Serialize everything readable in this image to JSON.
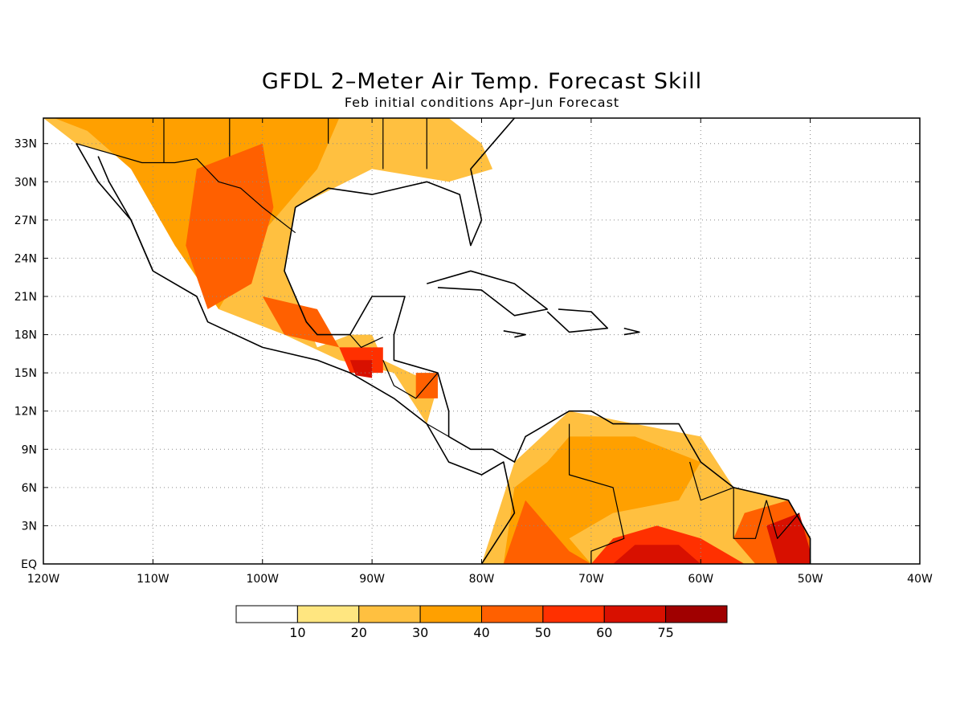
{
  "title": "GFDL 2–Meter Air Temp. Forecast Skill",
  "subtitle": "Feb initial conditions  Apr–Jun Forecast",
  "map": {
    "lon_range": [
      -120,
      -40
    ],
    "lat_range": [
      0,
      35
    ],
    "grid": true,
    "lat_labels": [
      "EQ",
      "3N",
      "6N",
      "9N",
      "12N",
      "15N",
      "18N",
      "21N",
      "24N",
      "27N",
      "30N",
      "33N"
    ],
    "lon_labels": [
      "120W",
      "110W",
      "100W",
      "90W",
      "80W",
      "70W",
      "60W",
      "50W",
      "40W"
    ]
  },
  "colorbar": {
    "labels": [
      "10",
      "20",
      "30",
      "40",
      "50",
      "60",
      "75"
    ],
    "colors": [
      "#ffffff",
      "#ffe680",
      "#ffc040",
      "#ffa000",
      "#ff6000",
      "#ff3000",
      "#d81000",
      "#a00000"
    ]
  },
  "skill_regions": [
    {
      "level": 2,
      "points": [
        [
          -120,
          35
        ],
        [
          -83,
          35
        ],
        [
          -80,
          33
        ],
        [
          -79,
          31
        ],
        [
          -83,
          30
        ],
        [
          -90,
          31
        ],
        [
          -97,
          28
        ],
        [
          -98,
          23
        ],
        [
          -96,
          19
        ],
        [
          -95,
          17
        ],
        [
          -92,
          18
        ],
        [
          -90,
          18
        ],
        [
          -89,
          16
        ],
        [
          -84,
          14
        ],
        [
          -85,
          11
        ],
        [
          -88,
          15
        ],
        [
          -93,
          16
        ],
        [
          -98,
          18
        ],
        [
          -104,
          20
        ],
        [
          -107,
          25
        ],
        [
          -110,
          29
        ],
        [
          -113,
          32
        ],
        [
          -117,
          33
        ]
      ]
    },
    {
      "level": 3,
      "points": [
        [
          -119,
          35
        ],
        [
          -93,
          35
        ],
        [
          -95,
          31
        ],
        [
          -100,
          26
        ],
        [
          -104,
          20
        ],
        [
          -108,
          25
        ],
        [
          -112,
          31
        ],
        [
          -116,
          34
        ]
      ]
    },
    {
      "level": 4,
      "points": [
        [
          -106,
          31
        ],
        [
          -100,
          33
        ],
        [
          -99,
          28
        ],
        [
          -101,
          22
        ],
        [
          -105,
          20
        ],
        [
          -107,
          25
        ]
      ]
    },
    {
      "level": 4,
      "points": [
        [
          -100,
          21
        ],
        [
          -95,
          20
        ],
        [
          -93,
          17
        ],
        [
          -98,
          18
        ]
      ]
    },
    {
      "level": 5,
      "points": [
        [
          -93,
          17
        ],
        [
          -89,
          17
        ],
        [
          -89,
          15
        ],
        [
          -92,
          15
        ]
      ]
    },
    {
      "level": 6,
      "points": [
        [
          -92,
          16
        ],
        [
          -90,
          16
        ],
        [
          -90,
          14.6
        ],
        [
          -91.5,
          14.8
        ]
      ]
    },
    {
      "level": 4,
      "points": [
        [
          -86,
          15
        ],
        [
          -84,
          15
        ],
        [
          -84,
          13
        ],
        [
          -86,
          13
        ]
      ]
    },
    {
      "level": 2,
      "points": [
        [
          -80,
          0
        ],
        [
          -77,
          8
        ],
        [
          -72,
          12
        ],
        [
          -66,
          11
        ],
        [
          -60,
          10
        ],
        [
          -57,
          6
        ],
        [
          -52,
          5
        ],
        [
          -50,
          2
        ],
        [
          -50,
          0
        ]
      ]
    },
    {
      "level": 3,
      "points": [
        [
          -78,
          0
        ],
        [
          -77,
          6
        ],
        [
          -74,
          8
        ],
        [
          -72,
          10
        ],
        [
          -66,
          10
        ],
        [
          -60,
          8
        ],
        [
          -62,
          5
        ],
        [
          -68,
          4
        ],
        [
          -72,
          2
        ],
        [
          -70,
          0
        ]
      ]
    },
    {
      "level": 4,
      "points": [
        [
          -78,
          0
        ],
        [
          -76,
          5
        ],
        [
          -74,
          3
        ],
        [
          -72,
          1
        ],
        [
          -70,
          0
        ]
      ]
    },
    {
      "level": 5,
      "points": [
        [
          -70,
          0
        ],
        [
          -68,
          2
        ],
        [
          -64,
          3
        ],
        [
          -60,
          2
        ],
        [
          -56,
          0
        ]
      ]
    },
    {
      "level": 6,
      "points": [
        [
          -68,
          0
        ],
        [
          -66,
          1.5
        ],
        [
          -62,
          1.5
        ],
        [
          -60,
          0
        ]
      ]
    },
    {
      "level": 4,
      "points": [
        [
          -56,
          4
        ],
        [
          -52,
          5
        ],
        [
          -50,
          2
        ],
        [
          -50,
          0
        ],
        [
          -55,
          0
        ],
        [
          -57,
          2
        ]
      ]
    },
    {
      "level": 6,
      "points": [
        [
          -54,
          3
        ],
        [
          -51,
          4
        ],
        [
          -50,
          1
        ],
        [
          -50,
          0
        ],
        [
          -53,
          0
        ]
      ]
    }
  ],
  "coastlines": [
    [
      [
        -117,
        33
      ],
      [
        -115,
        30
      ],
      [
        -112,
        27
      ],
      [
        -110,
        23
      ],
      [
        -106,
        21
      ],
      [
        -105,
        19
      ],
      [
        -100,
        17
      ],
      [
        -95,
        16
      ],
      [
        -92,
        15
      ],
      [
        -88,
        13
      ],
      [
        -85,
        11
      ],
      [
        -83,
        8
      ],
      [
        -80,
        7
      ],
      [
        -78,
        8
      ],
      [
        -77,
        4
      ],
      [
        -80,
        0
      ]
    ],
    [
      [
        -110,
        23
      ],
      [
        -112,
        27
      ],
      [
        -114,
        30
      ],
      [
        -115,
        32
      ]
    ],
    [
      [
        -97,
        28
      ],
      [
        -98,
        23
      ],
      [
        -96,
        19
      ],
      [
        -95,
        18
      ],
      [
        -92,
        18
      ],
      [
        -90,
        21
      ],
      [
        -87,
        21
      ],
      [
        -88,
        18
      ],
      [
        -88,
        16
      ],
      [
        -84,
        15
      ],
      [
        -83,
        12
      ],
      [
        -83,
        10
      ],
      [
        -81,
        9
      ],
      [
        -79,
        9
      ],
      [
        -77,
        8
      ],
      [
        -76,
        10
      ],
      [
        -72,
        12
      ],
      [
        -70,
        12
      ],
      [
        -68,
        11
      ],
      [
        -62,
        11
      ],
      [
        -60,
        8
      ],
      [
        -57,
        6
      ],
      [
        -52,
        5
      ],
      [
        -50,
        2
      ],
      [
        -50,
        0
      ]
    ],
    [
      [
        -97,
        28
      ],
      [
        -94,
        29.5
      ],
      [
        -90,
        29
      ],
      [
        -85,
        30
      ],
      [
        -82,
        29
      ],
      [
        -81,
        25
      ],
      [
        -80,
        27
      ],
      [
        -81,
        31
      ],
      [
        -79,
        33
      ],
      [
        -77,
        35
      ]
    ],
    [
      [
        -85,
        22
      ],
      [
        -81,
        23
      ],
      [
        -77,
        22
      ],
      [
        -74,
        20
      ],
      [
        -77,
        19.5
      ],
      [
        -80,
        21.5
      ],
      [
        -84,
        21.7
      ]
    ],
    [
      [
        -74,
        19.8
      ],
      [
        -72,
        18.2
      ],
      [
        -68.5,
        18.5
      ],
      [
        -70,
        19.8
      ],
      [
        -73,
        20
      ]
    ],
    [
      [
        -78,
        18.3
      ],
      [
        -76,
        18
      ],
      [
        -77,
        17.8
      ]
    ],
    [
      [
        -67,
        18.5
      ],
      [
        -65.6,
        18.2
      ],
      [
        -67,
        18
      ]
    ]
  ],
  "borders": [
    [
      [
        -117,
        33
      ],
      [
        -111,
        31.5
      ],
      [
        -108,
        31.5
      ],
      [
        -106,
        31.8
      ],
      [
        -104,
        30
      ],
      [
        -102,
        29.5
      ],
      [
        -100,
        28
      ],
      [
        -97,
        26
      ]
    ],
    [
      [
        -92,
        18
      ],
      [
        -91,
        17
      ],
      [
        -89,
        17.8
      ]
    ],
    [
      [
        -89,
        16
      ],
      [
        -88,
        14
      ],
      [
        -86,
        13
      ],
      [
        -84,
        15
      ]
    ],
    [
      [
        -85,
        11
      ],
      [
        -83,
        10
      ]
    ],
    [
      [
        -72,
        11
      ],
      [
        -72,
        7
      ],
      [
        -68,
        6
      ],
      [
        -67,
        2
      ],
      [
        -70,
        1
      ],
      [
        -70,
        0
      ]
    ],
    [
      [
        -61,
        8
      ],
      [
        -60,
        5
      ],
      [
        -57,
        6
      ]
    ],
    [
      [
        -57,
        6
      ],
      [
        -57,
        2
      ],
      [
        -55,
        2
      ],
      [
        -54,
        5
      ]
    ],
    [
      [
        -54,
        5
      ],
      [
        -53,
        2
      ],
      [
        -51,
        4
      ]
    ],
    [
      [
        -109,
        31.5
      ],
      [
        -109,
        35
      ]
    ],
    [
      [
        -103,
        32
      ],
      [
        -103,
        35
      ]
    ],
    [
      [
        -94,
        33
      ],
      [
        -94,
        35
      ]
    ],
    [
      [
        -89,
        31
      ],
      [
        -89,
        35
      ]
    ],
    [
      [
        -85,
        31
      ],
      [
        -85,
        35
      ]
    ]
  ]
}
